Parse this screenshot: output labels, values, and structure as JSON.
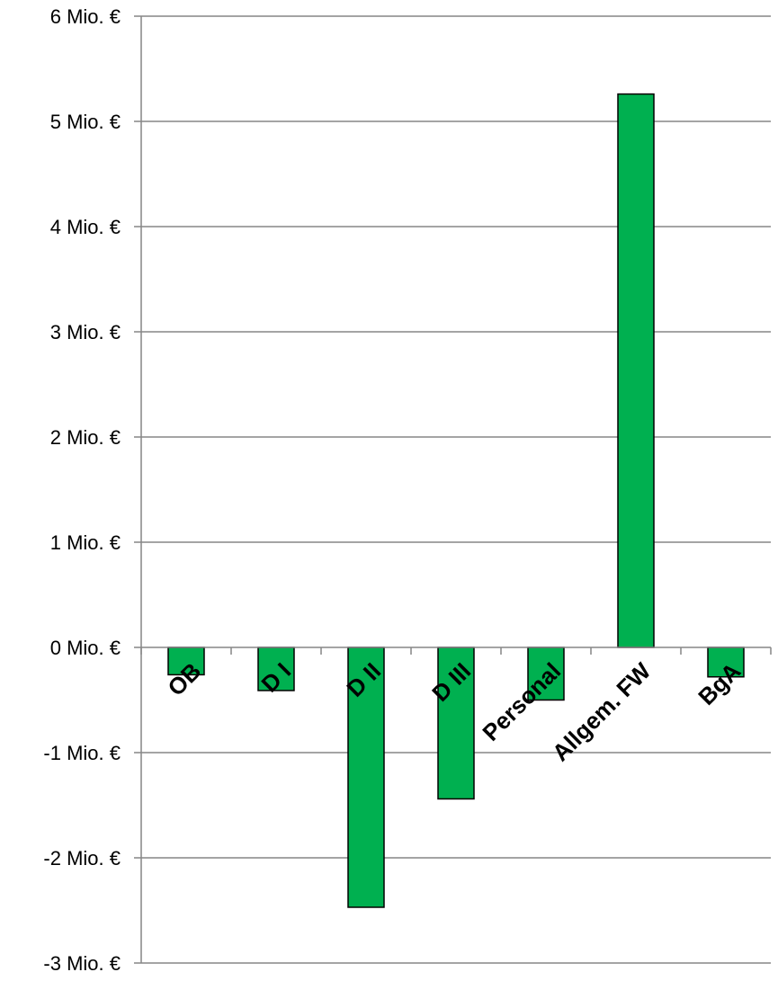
{
  "chart_data": {
    "type": "bar",
    "title": "",
    "xlabel": "",
    "ylabel": "",
    "categories": [
      "OB",
      "D I",
      "D II",
      "D III",
      "Personal",
      "Allgem. FW",
      "BgA"
    ],
    "series": [
      {
        "values": [
          -0.26,
          -0.41,
          -2.47,
          -1.44,
          -0.5,
          5.26,
          -0.28
        ]
      }
    ],
    "ylim": [
      -3,
      6
    ],
    "y_ticks": [
      -3,
      -2,
      -1,
      0,
      1,
      2,
      3,
      4,
      5,
      6
    ],
    "y_tick_labels": [
      "-3 Mio. €",
      "-2 Mio. €",
      "-1 Mio. €",
      "0 Mio. €",
      "1 Mio. €",
      "2 Mio. €",
      "3 Mio. €",
      "4 Mio. €",
      "5 Mio. €",
      "6 Mio. €"
    ],
    "grid": true,
    "legend": "none",
    "colors": {
      "bar_fill": "#00b050",
      "bar_stroke": "#000000",
      "grid": "#868686",
      "axis": "#868686"
    }
  }
}
